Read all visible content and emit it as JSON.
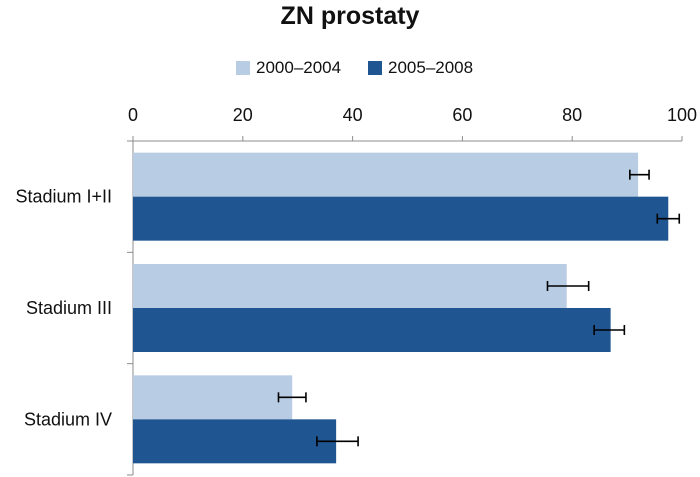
{
  "chart_data": {
    "type": "bar",
    "orientation": "horizontal",
    "title": "ZN prostaty",
    "xlabel": "",
    "ylabel": "",
    "xlim": [
      0,
      100
    ],
    "x_ticks": [
      "0",
      "20",
      "40",
      "60",
      "80",
      "100"
    ],
    "x_tick_values": [
      0,
      20,
      40,
      60,
      80,
      100
    ],
    "categories": [
      "Stadium I+II",
      "Stadium III",
      "Stadium IV"
    ],
    "series": [
      {
        "name": "2000–2004",
        "color": "#b8cce4",
        "values": [
          92,
          79,
          29
        ],
        "error_low": [
          90.5,
          75.5,
          26.5
        ],
        "error_high": [
          94,
          83,
          31.5
        ]
      },
      {
        "name": "2005–2008",
        "color": "#1f5591",
        "values": [
          97.5,
          87,
          37
        ],
        "error_low": [
          95.5,
          84,
          33.5
        ],
        "error_high": [
          99.5,
          89.5,
          41
        ]
      }
    ],
    "error_bars": true,
    "grid": false,
    "legend_position": "top"
  }
}
